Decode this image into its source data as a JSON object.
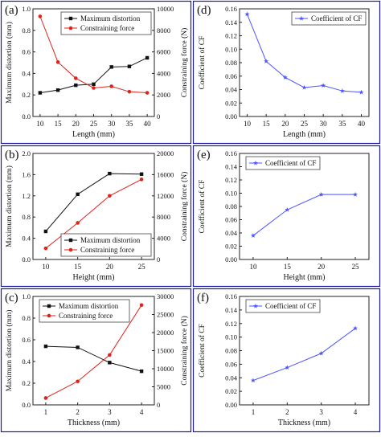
{
  "colors": {
    "frame": "#1a1aa6",
    "black_series": "#111111",
    "red_series": "#e0221b",
    "blue_series": "#4d55ff"
  },
  "chart_data": [
    {
      "panel": "(a)",
      "type": "line",
      "xlabel": "Length (mm)",
      "ylabel": "Maximum distortion (mm)",
      "ylabel_right": "Constraining force (N)",
      "x": [
        10,
        15,
        20,
        25,
        30,
        35,
        40
      ],
      "xlim": [
        8,
        42
      ],
      "xticks": [
        "10",
        "15",
        "20",
        "25",
        "30",
        "35",
        "40"
      ],
      "ylim": [
        0,
        1.0
      ],
      "yticks": [
        "0.0",
        "0.2",
        "0.4",
        "0.6",
        "0.8",
        "1.0"
      ],
      "ylim_right": [
        0,
        10000
      ],
      "yticks_right": [
        "0",
        "2000",
        "4000",
        "6000",
        "8000",
        "10000"
      ],
      "legend_position": "top-right",
      "series": [
        {
          "name": "Maximum distortion",
          "axis": "left",
          "color": "#111111",
          "marker": "square",
          "values": [
            0.22,
            0.245,
            0.29,
            0.3,
            0.46,
            0.465,
            0.545
          ]
        },
        {
          "name": "Constraining force",
          "axis": "right",
          "color": "#e0221b",
          "marker": "circle",
          "values": [
            9300,
            5050,
            3550,
            2650,
            2800,
            2300,
            2200
          ]
        }
      ]
    },
    {
      "panel": "(d)",
      "type": "line",
      "xlabel": "Length (mm)",
      "ylabel": "Coefficient of CF",
      "x": [
        10,
        15,
        20,
        25,
        30,
        35,
        40
      ],
      "xlim": [
        8,
        42
      ],
      "xticks": [
        "10",
        "15",
        "20",
        "25",
        "30",
        "35",
        "40"
      ],
      "ylim": [
        0,
        0.16
      ],
      "yticks": [
        "0.00",
        "0.02",
        "0.04",
        "0.06",
        "0.08",
        "0.10",
        "0.12",
        "0.14",
        "0.16"
      ],
      "legend_position": "top-right",
      "series": [
        {
          "name": "Coefficient of CF",
          "axis": "left",
          "color": "#4d55ff",
          "marker": "star",
          "values": [
            0.152,
            0.082,
            0.058,
            0.043,
            0.046,
            0.038,
            0.036
          ]
        }
      ]
    },
    {
      "panel": "(b)",
      "type": "line",
      "xlabel": "Height (mm)",
      "ylabel": "Maximum distortion (mm)",
      "ylabel_right": "Constraining force (N)",
      "x": [
        10,
        15,
        20,
        25
      ],
      "xlim": [
        8,
        27
      ],
      "xticks": [
        "10",
        "15",
        "20",
        "25"
      ],
      "ylim": [
        0,
        2.0
      ],
      "yticks": [
        "0.0",
        "0.4",
        "0.8",
        "1.2",
        "1.6",
        "2.0"
      ],
      "ylim_right": [
        0,
        20000
      ],
      "yticks_right": [
        "0",
        "4000",
        "8000",
        "12000",
        "16000",
        "20000"
      ],
      "legend_position": "bottom-right",
      "series": [
        {
          "name": "Maximum distortion",
          "axis": "left",
          "color": "#111111",
          "marker": "square",
          "values": [
            0.53,
            1.23,
            1.62,
            1.61
          ]
        },
        {
          "name": "Constraining force",
          "axis": "right",
          "color": "#e0221b",
          "marker": "circle",
          "values": [
            2100,
            6900,
            12000,
            15100
          ]
        }
      ]
    },
    {
      "panel": "(e)",
      "type": "line",
      "xlabel": "Height (mm)",
      "ylabel": "Coefficient of CF",
      "x": [
        10,
        15,
        20,
        25
      ],
      "xlim": [
        8,
        27
      ],
      "xticks": [
        "10",
        "15",
        "20",
        "25"
      ],
      "ylim": [
        0,
        0.16
      ],
      "yticks": [
        "0.00",
        "0.02",
        "0.04",
        "0.06",
        "0.08",
        "0.10",
        "0.12",
        "0.14",
        "0.16"
      ],
      "legend_position": "top-left",
      "series": [
        {
          "name": "Coefficient of CF",
          "axis": "left",
          "color": "#4d55ff",
          "marker": "star",
          "values": [
            0.036,
            0.075,
            0.098,
            0.098
          ]
        }
      ]
    },
    {
      "panel": "(c)",
      "type": "line",
      "xlabel": "Thickness (mm)",
      "ylabel": "Maximum distortion (mm)",
      "ylabel_right": "Constraining force (N)",
      "x": [
        1,
        2,
        3,
        4
      ],
      "xlim": [
        0.6,
        4.4
      ],
      "xticks": [
        "1",
        "2",
        "3",
        "4"
      ],
      "ylim": [
        0,
        1.0
      ],
      "yticks": [
        "0.0",
        "0.2",
        "0.4",
        "0.6",
        "0.8",
        "1.0"
      ],
      "ylim_right": [
        0,
        30000
      ],
      "yticks_right": [
        "0",
        "5000",
        "10000",
        "15000",
        "20000",
        "25000",
        "30000"
      ],
      "legend_position": "top-left",
      "series": [
        {
          "name": "Maximum distortion",
          "axis": "left",
          "color": "#111111",
          "marker": "square",
          "values": [
            0.54,
            0.53,
            0.39,
            0.31
          ]
        },
        {
          "name": "Constraining force",
          "axis": "right",
          "color": "#e0221b",
          "marker": "circle",
          "values": [
            1900,
            6500,
            13800,
            27600
          ]
        }
      ]
    },
    {
      "panel": "(f)",
      "type": "line",
      "xlabel": "Thickness (mm)",
      "ylabel": "Coefficient of CF",
      "x": [
        1,
        2,
        3,
        4
      ],
      "xlim": [
        0.6,
        4.4
      ],
      "xticks": [
        "1",
        "2",
        "3",
        "4"
      ],
      "ylim": [
        0,
        0.16
      ],
      "yticks": [
        "0.00",
        "0.02",
        "0.04",
        "0.06",
        "0.08",
        "0.10",
        "0.12",
        "0.14",
        "0.16"
      ],
      "legend_position": "top-left",
      "series": [
        {
          "name": "Coefficient of CF",
          "axis": "left",
          "color": "#4d55ff",
          "marker": "star",
          "values": [
            0.036,
            0.055,
            0.076,
            0.113
          ]
        }
      ]
    }
  ]
}
